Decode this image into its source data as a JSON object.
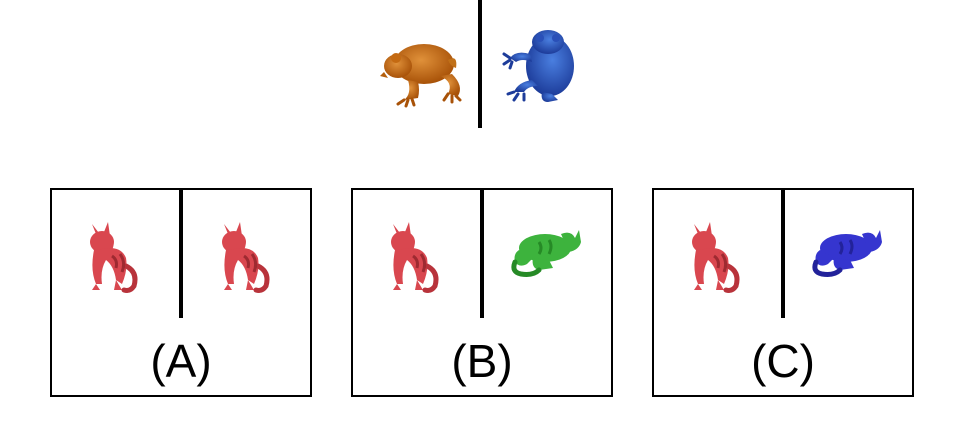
{
  "prompt": {
    "left_figure": {
      "animal": "frog",
      "color": "#c8690f"
    },
    "right_figure": {
      "animal": "frog",
      "color": "#2e55c4"
    }
  },
  "options": [
    {
      "label": "(A)",
      "left": {
        "animal": "cat",
        "color": "#d9474f"
      },
      "right": {
        "animal": "cat",
        "color": "#d9474f"
      }
    },
    {
      "label": "(B)",
      "left": {
        "animal": "cat",
        "color": "#d9474f"
      },
      "right": {
        "animal": "cat-lying",
        "color": "#3db33d"
      }
    },
    {
      "label": "(C)",
      "left": {
        "animal": "cat",
        "color": "#d9474f"
      },
      "right": {
        "animal": "cat-lying",
        "color": "#3535cf"
      }
    }
  ]
}
